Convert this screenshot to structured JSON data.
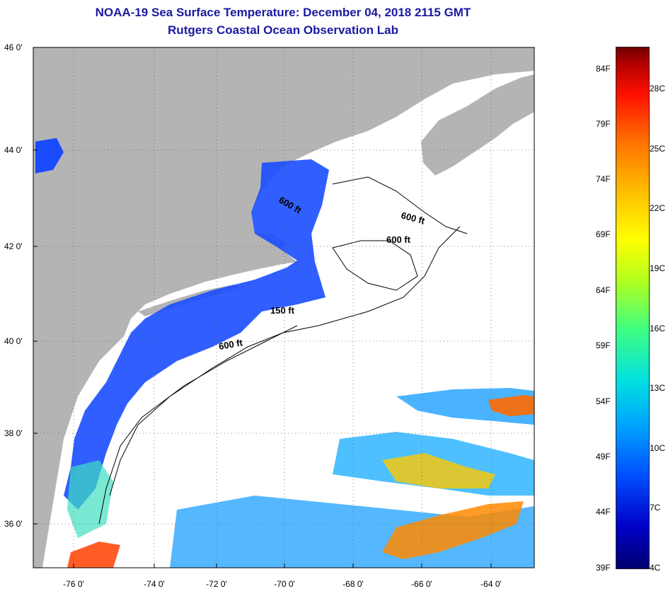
{
  "title": {
    "line1": "NOAA-19 Sea Surface Temperature:  December 04, 2018 2115 GMT",
    "line2": "Rutgers Coastal Ocean Observation Lab"
  },
  "map": {
    "latitude_labels": [
      "46 0'",
      "44 0'",
      "42 0'",
      "40 0'",
      "38 0'",
      "36 0'"
    ],
    "longitude_labels": [
      "-76 0'",
      "-74 0'",
      "-72 0'",
      "-70 0'",
      "-68 0'",
      "-66 0'",
      "-64 0'"
    ],
    "contour_labels": [
      "600 ft",
      "600 ft",
      "600 ft",
      "150 ft",
      "600 ft"
    ],
    "colors": {
      "land": "#b4b4b4",
      "cloud": "#ffffff",
      "cold_water": "#1a4cff",
      "warm_water": "#ff6a00"
    }
  },
  "colorbar": {
    "fahrenheit_labels": [
      "84F",
      "79F",
      "74F",
      "69F",
      "64F",
      "59F",
      "54F",
      "49F",
      "44F",
      "39F"
    ],
    "celsius_labels": [
      "28C",
      "25C",
      "22C",
      "19C",
      "16C",
      "13C",
      "10C",
      "7C",
      "4C"
    ]
  }
}
